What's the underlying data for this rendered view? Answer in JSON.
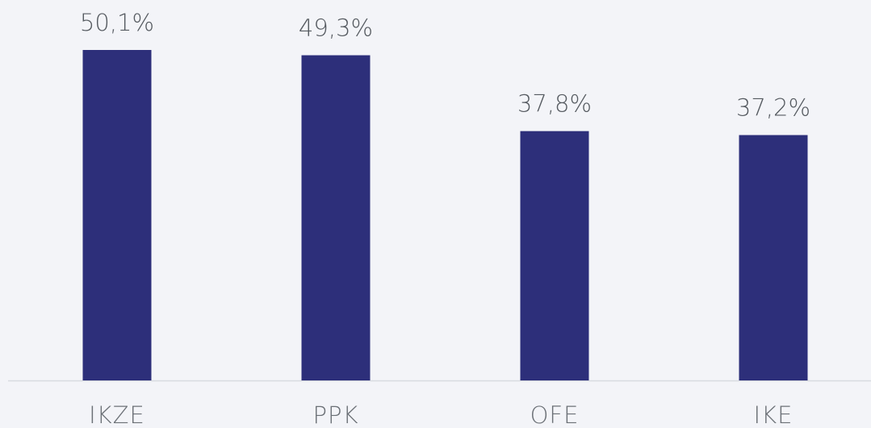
{
  "chart_data": {
    "type": "bar",
    "categories": [
      "IKZE",
      "PPK",
      "OFE",
      "IKE"
    ],
    "values": [
      50.1,
      49.3,
      37.8,
      37.2
    ],
    "value_labels": [
      "50,1%",
      "49,3%",
      "37,8%",
      "37,2%"
    ],
    "color": "#2d2f7a"
  }
}
